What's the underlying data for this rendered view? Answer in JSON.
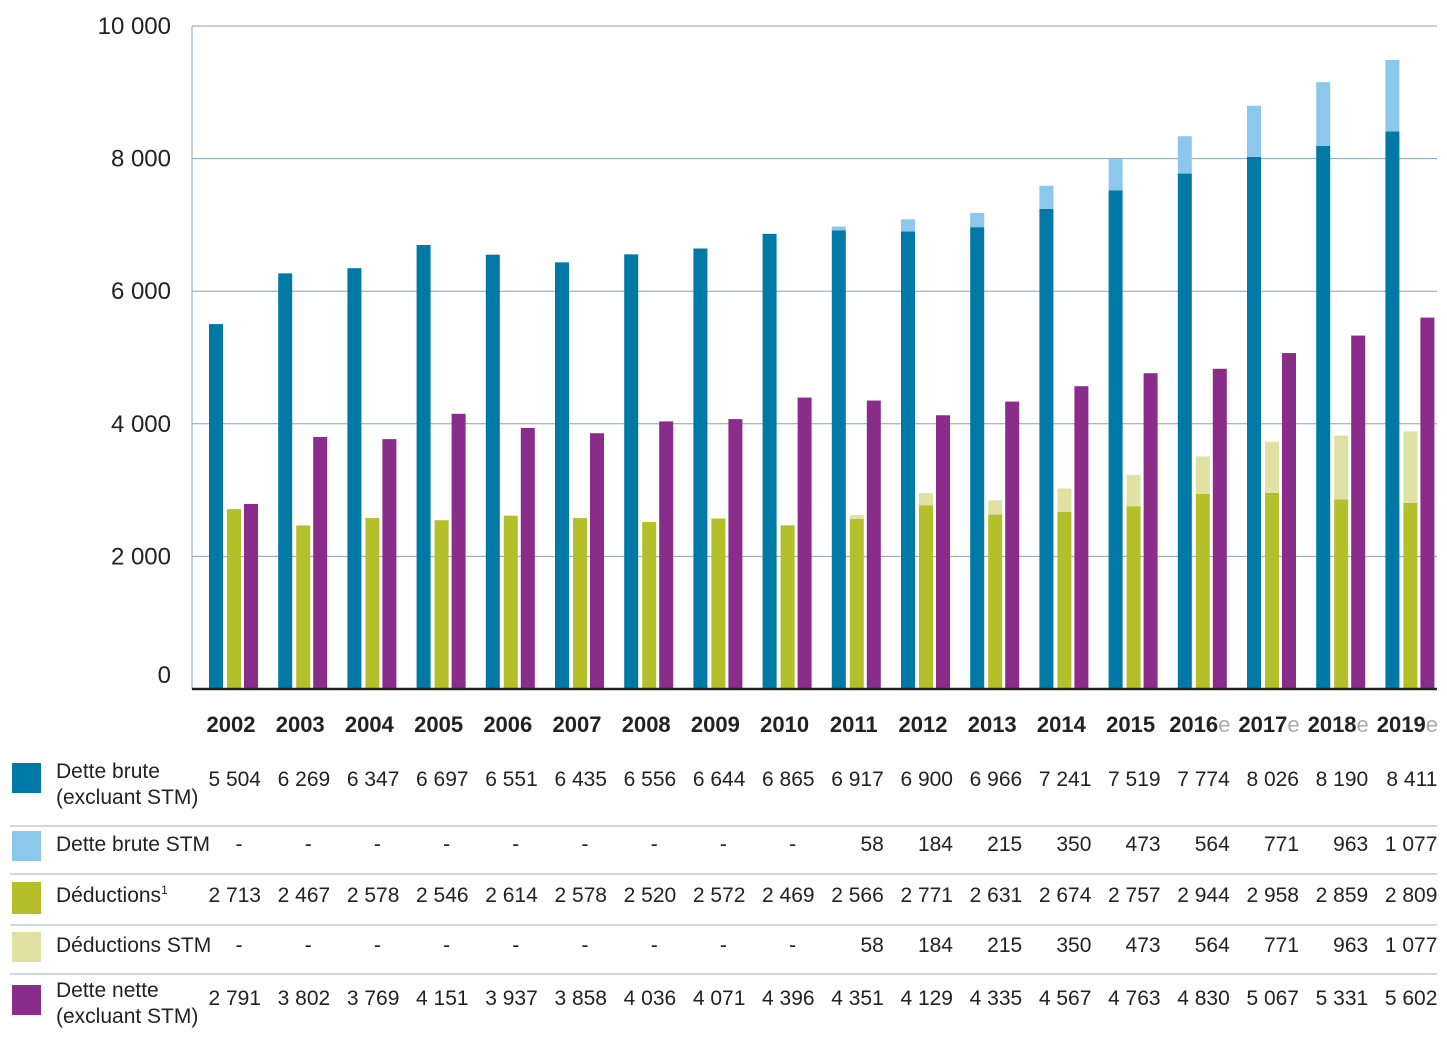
{
  "chart_data": {
    "type": "bar",
    "ylim": [
      0,
      10000
    ],
    "yticks": [
      {
        "value": 0,
        "label": "0"
      },
      {
        "value": 2000,
        "label": "2 000"
      },
      {
        "value": 4000,
        "label": "4 000"
      },
      {
        "value": 6000,
        "label": "6 000"
      },
      {
        "value": 8000,
        "label": "8 000"
      },
      {
        "value": 10000,
        "label": "10 000"
      }
    ],
    "grid": true,
    "categories": [
      {
        "year": "2002",
        "suffix": ""
      },
      {
        "year": "2003",
        "suffix": ""
      },
      {
        "year": "2004",
        "suffix": ""
      },
      {
        "year": "2005",
        "suffix": ""
      },
      {
        "year": "2006",
        "suffix": ""
      },
      {
        "year": "2007",
        "suffix": ""
      },
      {
        "year": "2008",
        "suffix": ""
      },
      {
        "year": "2009",
        "suffix": ""
      },
      {
        "year": "2010",
        "suffix": ""
      },
      {
        "year": "2011",
        "suffix": ""
      },
      {
        "year": "2012",
        "suffix": ""
      },
      {
        "year": "2013",
        "suffix": ""
      },
      {
        "year": "2014",
        "suffix": ""
      },
      {
        "year": "2015",
        "suffix": ""
      },
      {
        "year": "2016",
        "suffix": "e"
      },
      {
        "year": "2017",
        "suffix": "e"
      },
      {
        "year": "2018",
        "suffix": "e"
      },
      {
        "year": "2019",
        "suffix": "e"
      }
    ],
    "series": [
      {
        "name": "Dette brute (excluant STM)",
        "label_lines": [
          "Dette brute",
          "(excluant STM)"
        ],
        "color": "#0079a6",
        "values": [
          5504,
          6269,
          6347,
          6697,
          6551,
          6435,
          6556,
          6644,
          6865,
          6917,
          6900,
          6966,
          7241,
          7519,
          7774,
          8026,
          8190,
          8411
        ],
        "display": [
          "5 504",
          "6 269",
          "6 347",
          "6 697",
          "6 551",
          "6 435",
          "6 556",
          "6 644",
          "6 865",
          "6 917",
          "6 900",
          "6 966",
          "7 241",
          "7 519",
          "7 774",
          "8 026",
          "8 190",
          "8 411"
        ]
      },
      {
        "name": "Dette brute STM",
        "label_lines": [
          "Dette brute STM"
        ],
        "color": "#8cc8ec",
        "values": [
          0,
          0,
          0,
          0,
          0,
          0,
          0,
          0,
          0,
          58,
          184,
          215,
          350,
          473,
          564,
          771,
          963,
          1077
        ],
        "display": [
          "-",
          "-",
          "-",
          "-",
          "-",
          "-",
          "-",
          "-",
          "-",
          "58",
          "184",
          "215",
          "350",
          "473",
          "564",
          "771",
          "963",
          "1 077"
        ]
      },
      {
        "name": "Déductions",
        "label_lines": [
          "Déductions"
        ],
        "superscript": "1",
        "color": "#b4bf2a",
        "values": [
          2713,
          2467,
          2578,
          2546,
          2614,
          2578,
          2520,
          2572,
          2469,
          2566,
          2771,
          2631,
          2674,
          2757,
          2944,
          2958,
          2859,
          2809
        ],
        "display": [
          "2 713",
          "2 467",
          "2 578",
          "2 546",
          "2 614",
          "2 578",
          "2 520",
          "2 572",
          "2 469",
          "2 566",
          "2 771",
          "2 631",
          "2 674",
          "2 757",
          "2 944",
          "2 958",
          "2 859",
          "2 809"
        ]
      },
      {
        "name": "Déductions STM",
        "label_lines": [
          "Déductions STM"
        ],
        "color": "#dfe2a2",
        "values": [
          0,
          0,
          0,
          0,
          0,
          0,
          0,
          0,
          0,
          58,
          184,
          215,
          350,
          473,
          564,
          771,
          963,
          1077
        ],
        "display": [
          "-",
          "-",
          "-",
          "-",
          "-",
          "-",
          "-",
          "-",
          "-",
          "58",
          "184",
          "215",
          "350",
          "473",
          "564",
          "771",
          "963",
          "1 077"
        ]
      },
      {
        "name": "Dette nette (excluant STM)",
        "label_lines": [
          "Dette nette",
          "(excluant STM)"
        ],
        "color": "#8a2c8a",
        "values": [
          2791,
          3802,
          3769,
          4151,
          3937,
          3858,
          4036,
          4071,
          4396,
          4351,
          4129,
          4335,
          4567,
          4763,
          4830,
          5067,
          5331,
          5602
        ],
        "display": [
          "2 791",
          "3 802",
          "3 769",
          "4 151",
          "3 937",
          "3 858",
          "4 036",
          "4 071",
          "4 396",
          "4 351",
          "4 129",
          "4 335",
          "4 567",
          "4 763",
          "4 830",
          "5 067",
          "5 331",
          "5 602"
        ]
      }
    ]
  }
}
